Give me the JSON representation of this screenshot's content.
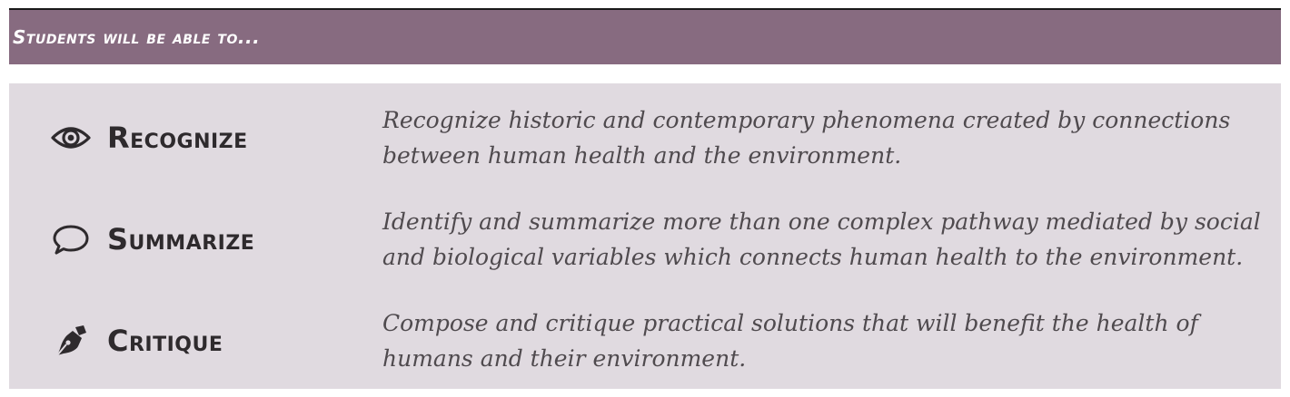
{
  "header": {
    "title": "Students will be able to..."
  },
  "objectives": [
    {
      "icon": "eye-icon",
      "verb": "Recognize",
      "text": "Recognize historic and contemporary phenomena created by connections between human health and the environment."
    },
    {
      "icon": "speech-bubble-icon",
      "verb": "Summarize",
      "text": "Identify and summarize more than one complex pathway mediated by social and biological variables which connects human health to the environment."
    },
    {
      "icon": "pen-nib-icon",
      "verb": "Critique",
      "text": "Compose and critique practical solutions that will benefit the health of humans and their environment."
    }
  ],
  "colors": {
    "header_background": "#876b80",
    "panel_background": "#e0dae0",
    "verb_text": "#2e2a2d",
    "body_text": "#4f4a4e"
  }
}
